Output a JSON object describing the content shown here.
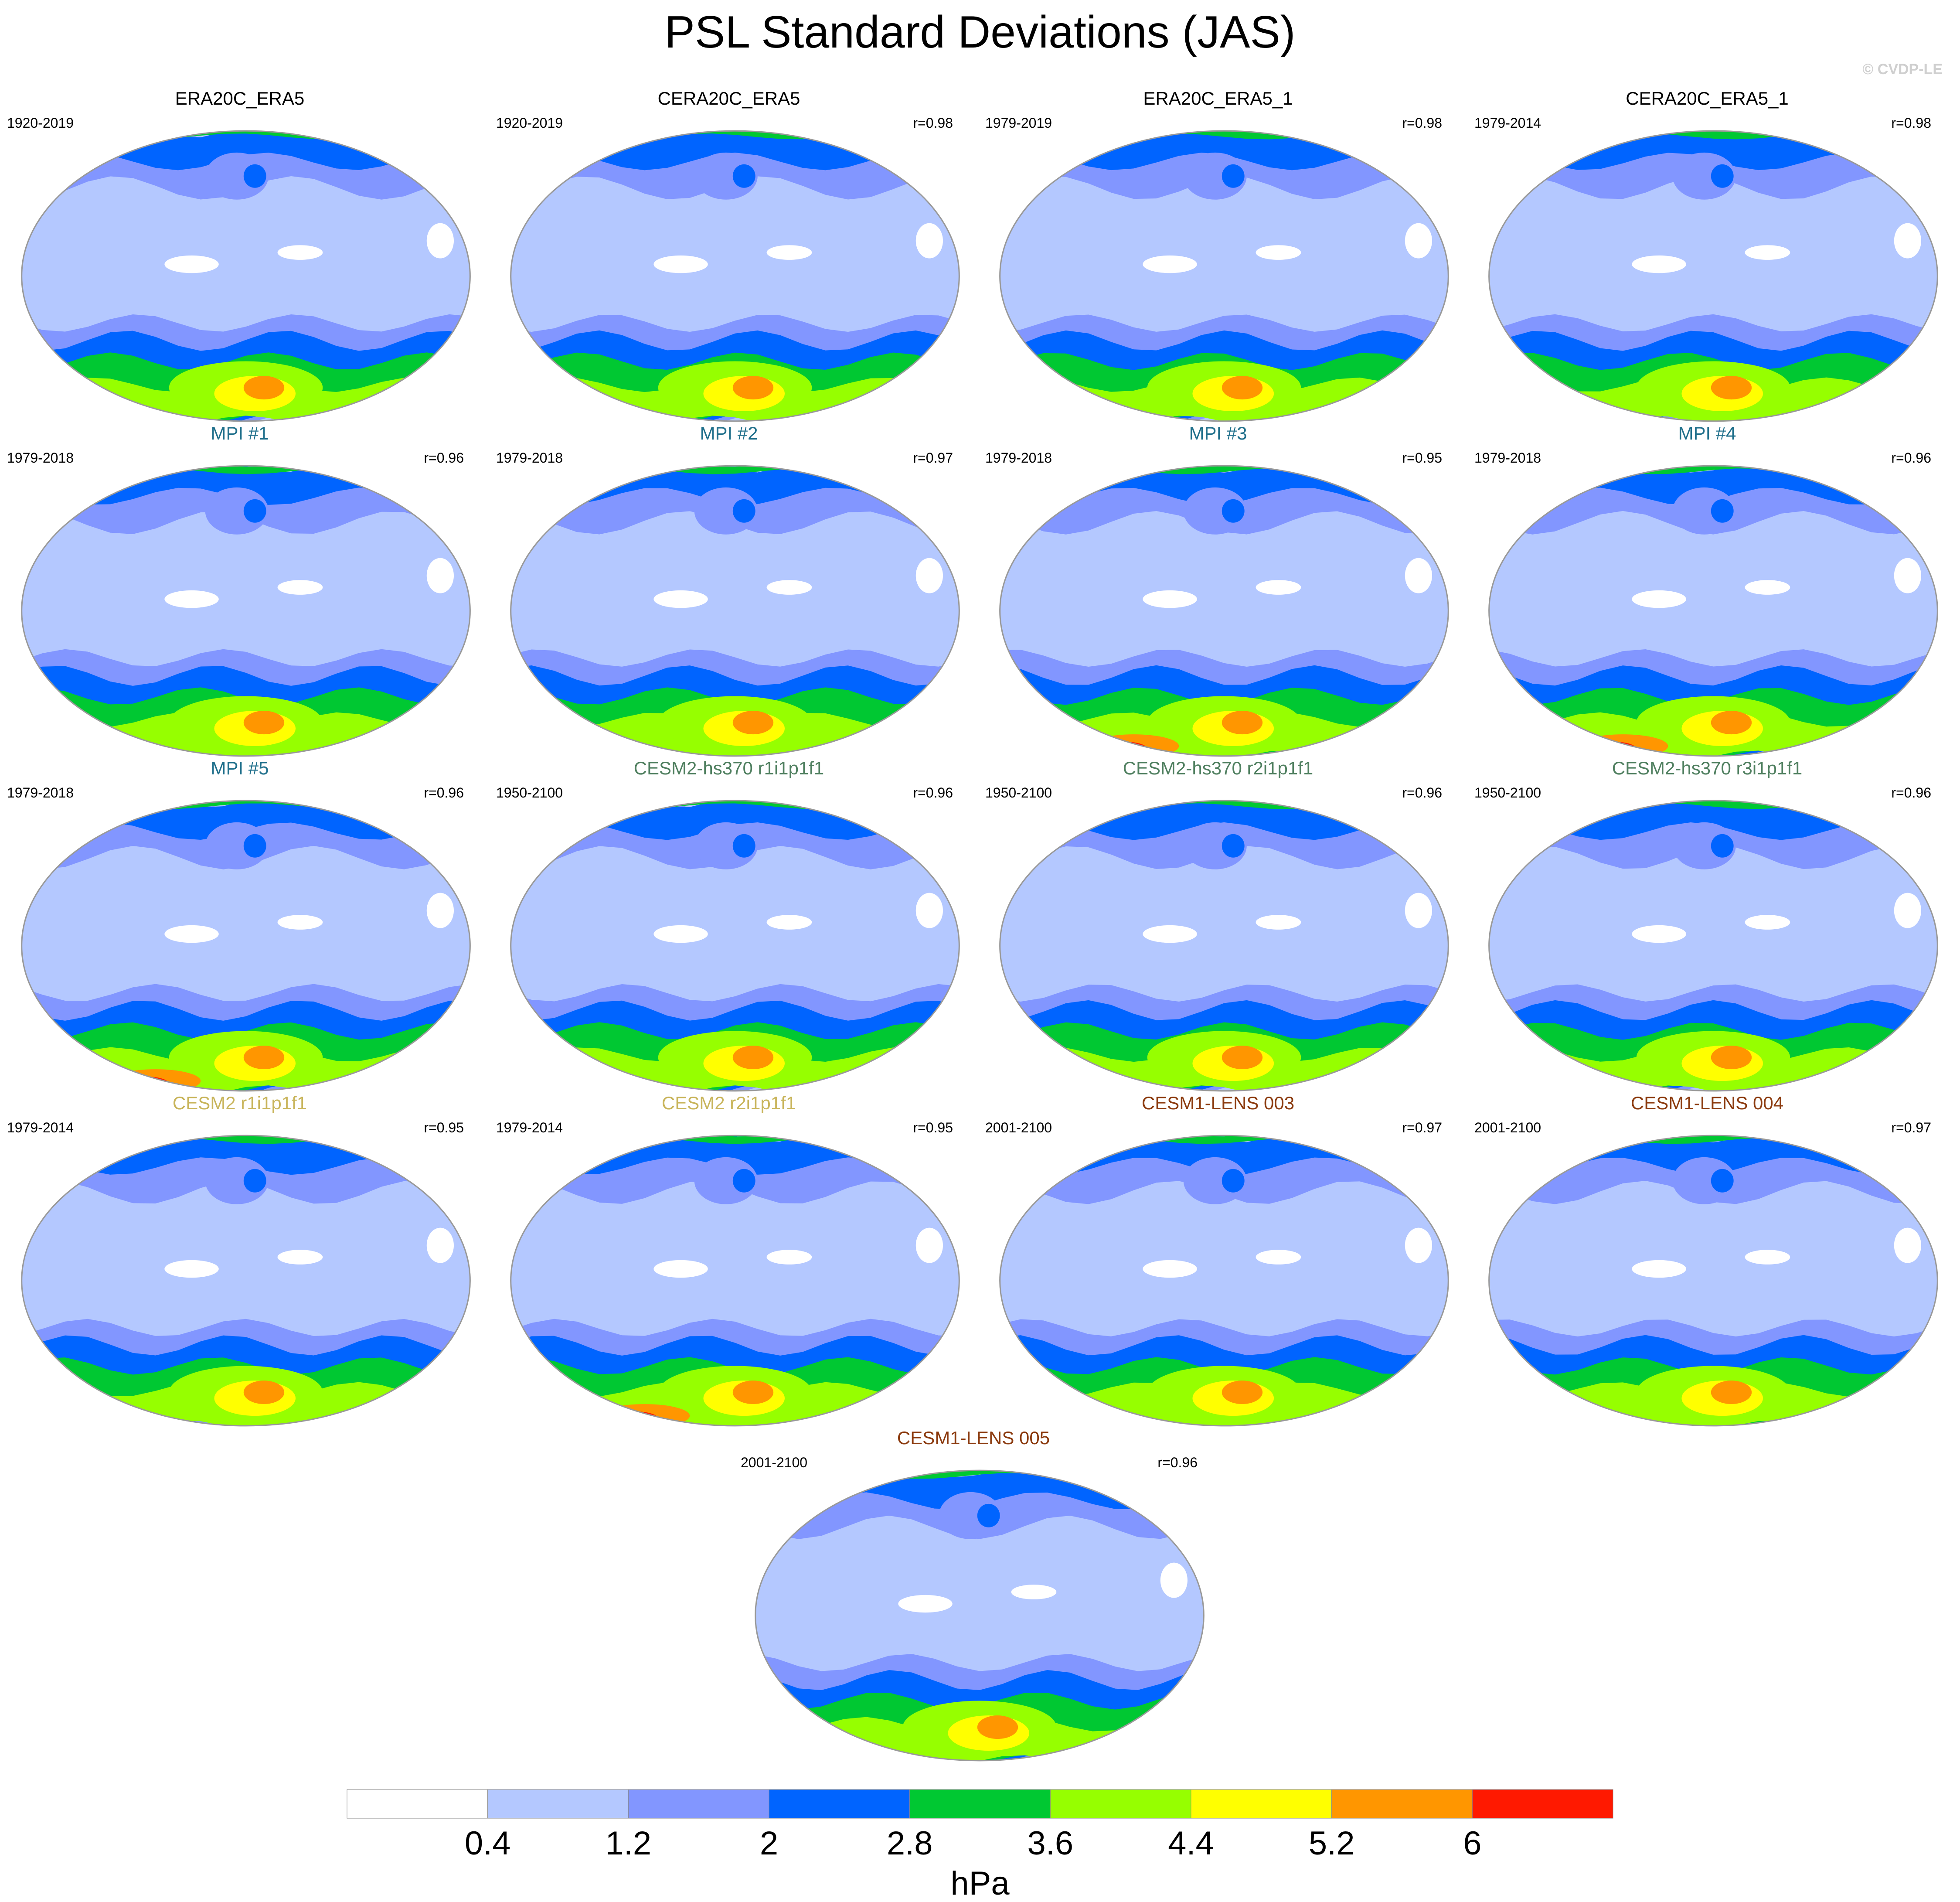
{
  "title": "PSL Standard Deviations (JAS)",
  "watermark": "© CVDP-LE",
  "panels": [
    {
      "title": "ERA20C_ERA5",
      "years": "1920-2019",
      "corr": "",
      "title_color": "#000000"
    },
    {
      "title": "CERA20C_ERA5",
      "years": "1920-2019",
      "corr": "r=0.98",
      "title_color": "#000000"
    },
    {
      "title": "ERA20C_ERA5_1",
      "years": "1979-2019",
      "corr": "r=0.98",
      "title_color": "#000000"
    },
    {
      "title": "CERA20C_ERA5_1",
      "years": "1979-2014",
      "corr": "r=0.98",
      "title_color": "#000000"
    },
    {
      "title": "MPI #1",
      "years": "1979-2018",
      "corr": "r=0.96",
      "title_color": "#1f6f8b"
    },
    {
      "title": "MPI #2",
      "years": "1979-2018",
      "corr": "r=0.97",
      "title_color": "#1f6f8b"
    },
    {
      "title": "MPI #3",
      "years": "1979-2018",
      "corr": "r=0.95",
      "title_color": "#1f6f8b"
    },
    {
      "title": "MPI #4",
      "years": "1979-2018",
      "corr": "r=0.96",
      "title_color": "#1f6f8b"
    },
    {
      "title": "MPI #5",
      "years": "1979-2018",
      "corr": "r=0.96",
      "title_color": "#1f6f8b"
    },
    {
      "title": "CESM2-hs370 r1i1p1f1",
      "years": "1950-2100",
      "corr": "r=0.96",
      "title_color": "#4f7f5f"
    },
    {
      "title": "CESM2-hs370 r2i1p1f1",
      "years": "1950-2100",
      "corr": "r=0.96",
      "title_color": "#4f7f5f"
    },
    {
      "title": "CESM2-hs370 r3i1p1f1",
      "years": "1950-2100",
      "corr": "r=0.96",
      "title_color": "#4f7f5f"
    },
    {
      "title": "CESM2 r1i1p1f1",
      "years": "1979-2014",
      "corr": "r=0.95",
      "title_color": "#c8b45a"
    },
    {
      "title": "CESM2 r2i1p1f1",
      "years": "1979-2014",
      "corr": "r=0.95",
      "title_color": "#c8b45a"
    },
    {
      "title": "CESM1-LENS 003",
      "years": "2001-2100",
      "corr": "r=0.97",
      "title_color": "#8b3a0e"
    },
    {
      "title": "CESM1-LENS 004",
      "years": "2001-2100",
      "corr": "r=0.97",
      "title_color": "#8b3a0e"
    },
    {
      "title": "CESM1-LENS 005",
      "years": "2001-2100",
      "corr": "r=0.96",
      "title_color": "#8b3a0e"
    }
  ],
  "colorbar": {
    "colors": [
      "#ffffff",
      "#b4c8ff",
      "#8296ff",
      "#0064ff",
      "#00c832",
      "#96ff00",
      "#ffff00",
      "#ff9600",
      "#ff1900"
    ],
    "labels": [
      "0.4",
      "1.2",
      "2",
      "2.8",
      "3.6",
      "4.4",
      "5.2",
      "6"
    ],
    "units": "hPa"
  }
}
